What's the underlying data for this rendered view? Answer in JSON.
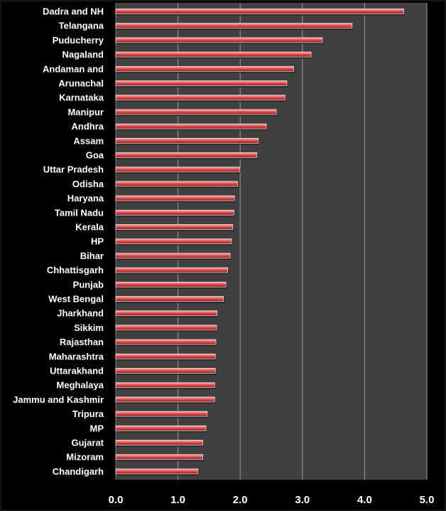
{
  "chart_data": {
    "type": "bar",
    "orientation": "horizontal",
    "title": "",
    "xlabel": "",
    "ylabel": "",
    "categories": [
      "Dadra and NH",
      "Telangana",
      "Puducherry",
      "Nagaland",
      "Andaman and",
      "Arunachal",
      "Karnataka",
      "Manipur",
      "Andhra",
      "Assam",
      "Goa",
      "Uttar Pradesh",
      "Odisha",
      "Haryana",
      "Tamil Nadu",
      "Kerala",
      "HP",
      "Bihar",
      "Chhattisgarh",
      "Punjab",
      "West Bengal",
      "Jharkhand",
      "Sikkim",
      "Rajasthan",
      "Maharashtra",
      "Uttarakhand",
      "Meghalaya",
      "Jammu and Kashmir",
      "Tripura",
      "MP",
      "Gujarat",
      "Mizoram",
      "Chandigarh"
    ],
    "values": [
      4.63,
      3.8,
      3.32,
      3.14,
      2.86,
      2.75,
      2.72,
      2.58,
      2.42,
      2.29,
      2.27,
      1.99,
      1.96,
      1.91,
      1.9,
      1.88,
      1.86,
      1.84,
      1.8,
      1.77,
      1.73,
      1.63,
      1.62,
      1.61,
      1.6,
      1.6,
      1.59,
      1.59,
      1.47,
      1.45,
      1.4,
      1.4,
      1.32
    ],
    "xlim": [
      0,
      5
    ],
    "xticks": [
      "0.0",
      "1.0",
      "2.0",
      "3.0",
      "4.0",
      "5.0"
    ],
    "grid": "vertical",
    "legend": "none",
    "colors": {
      "background": "#000000",
      "plot_area": "#404040",
      "bar_fill": "#e05050",
      "bar_highlight": "#ffb0b0",
      "bar_shadow": "#8a1c1c",
      "gridline": "#9a9a9a",
      "text": "#ffffff"
    }
  }
}
